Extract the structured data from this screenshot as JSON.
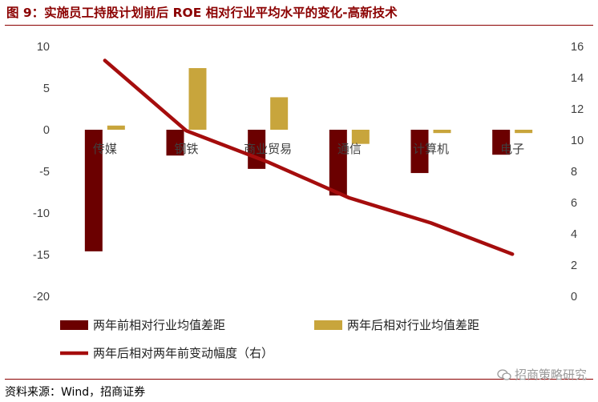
{
  "title": "图 9：实施员工持股计划前后 ROE 相对行业平均水平的变化-高新技术",
  "source": "资料来源：Wind，招商证券",
  "watermark": "招商策略研究",
  "colors": {
    "before_bar": "#6b0000",
    "after_bar": "#c8a53c",
    "line": "#a50d0d",
    "title": "#8b0000"
  },
  "chart_data": {
    "type": "bar+line",
    "categories": [
      "传媒",
      "钢铁",
      "商业贸易",
      "通信",
      "计算机",
      "电子"
    ],
    "series": [
      {
        "name": "两年前相对行业均值差距",
        "type": "bar",
        "axis": "left",
        "values": [
          -14.6,
          -3.1,
          -4.7,
          -7.9,
          -5.2,
          -3.0
        ]
      },
      {
        "name": "两年后相对行业均值差距",
        "type": "bar",
        "axis": "left",
        "values": [
          0.5,
          7.4,
          3.9,
          -1.7,
          -0.4,
          -0.4
        ]
      },
      {
        "name": "两年后相对两年前变动幅度（右）",
        "type": "line",
        "axis": "right",
        "values": [
          15.1,
          10.6,
          8.6,
          6.3,
          4.7,
          2.7
        ]
      }
    ],
    "left_axis": {
      "min": -20,
      "max": 10,
      "ticks": [
        10,
        5,
        0,
        -5,
        -10,
        -15,
        -20
      ]
    },
    "right_axis": {
      "min": 0,
      "max": 16,
      "ticks": [
        16,
        14,
        12,
        10,
        8,
        6,
        4,
        2,
        0
      ]
    },
    "grid": false,
    "legend_position": "bottom"
  }
}
